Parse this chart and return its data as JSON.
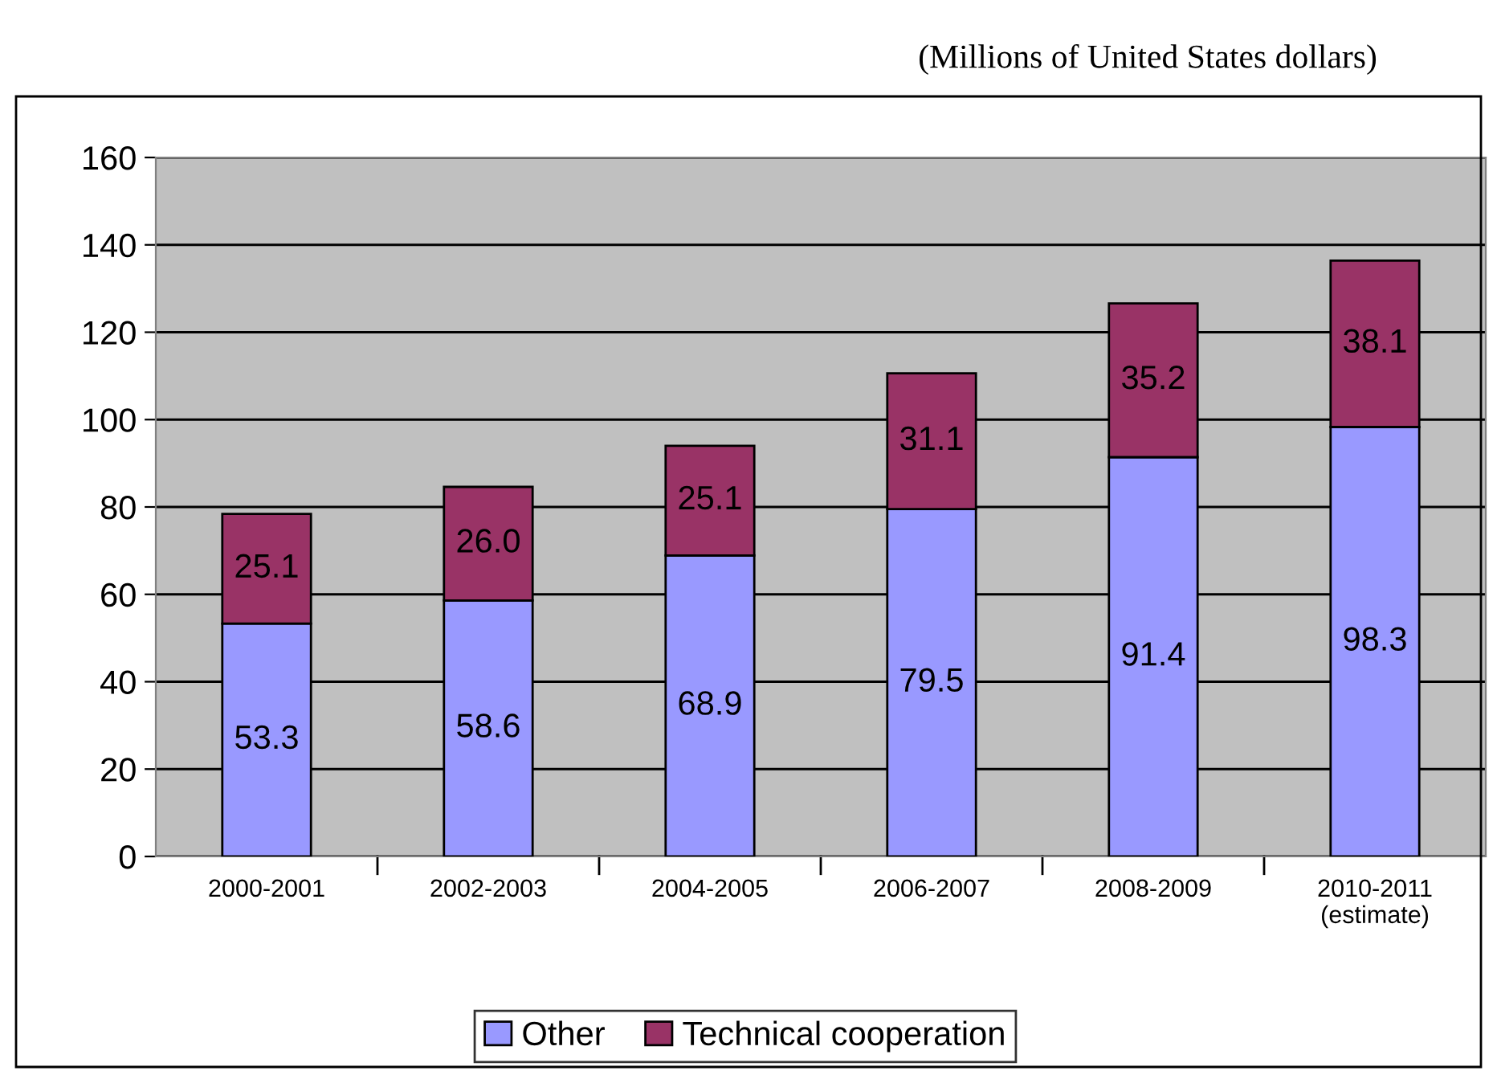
{
  "chart_data": {
    "type": "bar",
    "title": "(Millions of United States dollars)",
    "categories": [
      "2000-2001",
      "2002-2003",
      "2004-2005",
      "2006-2007",
      "2008-2009",
      "2010-2011\n(estimate)"
    ],
    "series": [
      {
        "name": "Other",
        "color": "#9999ff",
        "values": [
          53.3,
          58.6,
          68.9,
          79.5,
          91.4,
          98.3
        ],
        "value_labels": [
          "53.3",
          "58.6",
          "68.9",
          "79.5",
          "91.4",
          "98.3"
        ]
      },
      {
        "name": "Technical cooperation",
        "color": "#993366",
        "values": [
          25.1,
          26.0,
          25.1,
          31.1,
          35.2,
          38.1
        ],
        "value_labels": [
          "25.1",
          "26.0",
          "25.1",
          "31.1",
          "35.2",
          "38.1"
        ]
      }
    ],
    "stacked": true,
    "ylim": [
      0,
      160
    ],
    "yticks": [
      0,
      20,
      40,
      60,
      80,
      100,
      120,
      140,
      160
    ],
    "grid": "y",
    "legend": "bottom"
  }
}
